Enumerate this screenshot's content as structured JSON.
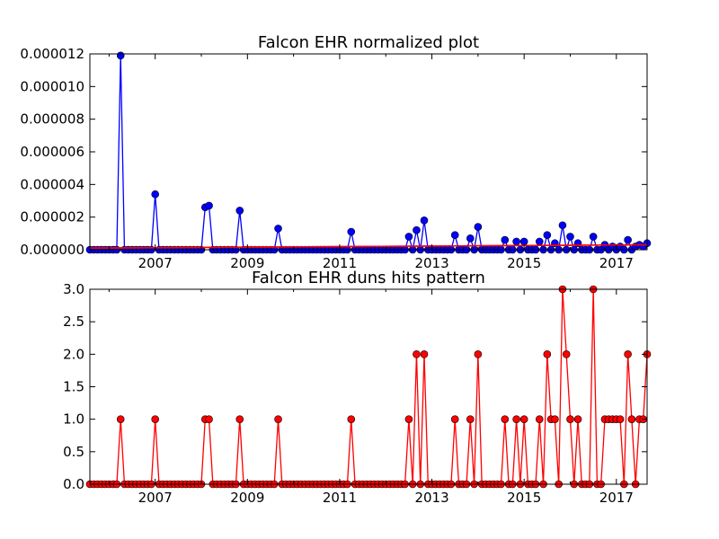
{
  "chart_data": [
    {
      "type": "line",
      "title": "Falcon EHR normalized plot",
      "xlabel": "",
      "ylabel": "",
      "xlim": [
        "2005-08",
        "2017-09"
      ],
      "ylim": [
        0,
        1.2e-05
      ],
      "grid": false,
      "x_tick_labels": [
        "2007",
        "2009",
        "2011",
        "2013",
        "2015",
        "2017"
      ],
      "y_tick_labels": [
        "0.000000",
        "0.000002",
        "0.000004",
        "0.000006",
        "0.000008",
        "0.000010",
        "0.000012"
      ],
      "series": [
        {
          "color": "#0000ff",
          "marker_color": "#0000ff",
          "points": [
            [
              "2006-04",
              1.19e-05
            ],
            [
              "2007-01",
              3.4e-06
            ],
            [
              "2008-02",
              2.6e-06
            ],
            [
              "2008-03",
              2.7e-06
            ],
            [
              "2008-11",
              2.4e-06
            ],
            [
              "2009-09",
              1.3e-06
            ],
            [
              "2011-04",
              1.1e-06
            ],
            [
              "2012-07",
              8e-07
            ],
            [
              "2012-09",
              1.2e-06
            ],
            [
              "2012-11",
              1.8e-06
            ],
            [
              "2013-07",
              9e-07
            ],
            [
              "2013-11",
              7e-07
            ],
            [
              "2014-01",
              1.4e-06
            ],
            [
              "2014-08",
              6e-07
            ],
            [
              "2014-11",
              5e-07
            ],
            [
              "2015-01",
              5e-07
            ],
            [
              "2015-05",
              5e-07
            ],
            [
              "2015-07",
              9e-07
            ],
            [
              "2015-09",
              4e-07
            ],
            [
              "2015-11",
              1.5e-06
            ],
            [
              "2016-01",
              8e-07
            ],
            [
              "2016-03",
              4e-07
            ],
            [
              "2016-07",
              8e-07
            ],
            [
              "2016-10",
              3e-07
            ],
            [
              "2016-12",
              2e-07
            ],
            [
              "2017-02",
              2e-07
            ],
            [
              "2017-04",
              6e-07
            ],
            [
              "2017-06",
              2e-07
            ],
            [
              "2017-07",
              3e-07
            ],
            [
              "2017-08",
              2e-07
            ],
            [
              "2017-09",
              4e-07
            ]
          ]
        },
        {
          "color": "#ff0000",
          "marker_color": "#ff0000",
          "points": [
            [
              "2005-08",
              1e-07
            ],
            [
              "2017-09",
              3e-07
            ]
          ]
        }
      ]
    },
    {
      "type": "line",
      "title": "Falcon EHR duns hits pattern",
      "xlabel": "",
      "ylabel": "",
      "xlim": [
        "2005-08",
        "2017-09"
      ],
      "ylim": [
        0,
        3
      ],
      "grid": false,
      "x_tick_labels": [
        "2007",
        "2009",
        "2011",
        "2013",
        "2015",
        "2017"
      ],
      "y_tick_labels": [
        "0.0",
        "0.5",
        "1.0",
        "1.5",
        "2.0",
        "2.5",
        "3.0"
      ],
      "series": [
        {
          "color": "#ff0000",
          "marker_color": "#ff0000",
          "points": [
            [
              "2006-04",
              1
            ],
            [
              "2007-01",
              1
            ],
            [
              "2008-02",
              1
            ],
            [
              "2008-03",
              1
            ],
            [
              "2008-11",
              1
            ],
            [
              "2009-09",
              1
            ],
            [
              "2011-04",
              1
            ],
            [
              "2012-07",
              1
            ],
            [
              "2012-09",
              2
            ],
            [
              "2012-11",
              2
            ],
            [
              "2013-07",
              1
            ],
            [
              "2013-11",
              1
            ],
            [
              "2014-01",
              2
            ],
            [
              "2014-08",
              1
            ],
            [
              "2014-11",
              1
            ],
            [
              "2015-01",
              1
            ],
            [
              "2015-05",
              1
            ],
            [
              "2015-07",
              2
            ],
            [
              "2015-08",
              1
            ],
            [
              "2015-09",
              1
            ],
            [
              "2015-11",
              3
            ],
            [
              "2015-12",
              2
            ],
            [
              "2016-01",
              1
            ],
            [
              "2016-03",
              1
            ],
            [
              "2016-07",
              3
            ],
            [
              "2016-10",
              1
            ],
            [
              "2016-11",
              1
            ],
            [
              "2016-12",
              1
            ],
            [
              "2017-01",
              1
            ],
            [
              "2017-02",
              1
            ],
            [
              "2017-04",
              2
            ],
            [
              "2017-05",
              1
            ],
            [
              "2017-07",
              1
            ],
            [
              "2017-08",
              1
            ],
            [
              "2017-09",
              2
            ]
          ]
        }
      ]
    }
  ]
}
